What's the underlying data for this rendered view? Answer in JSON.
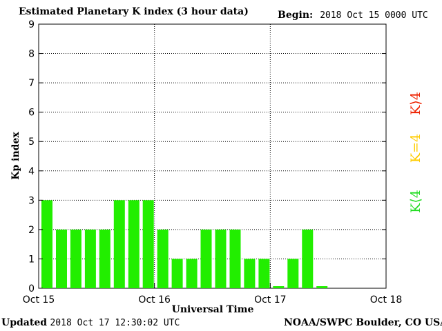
{
  "header": {
    "title": "Estimated Planetary K index (3 hour data)",
    "begin_label": "Begin:",
    "begin_value": "2018 Oct 15 0000 UTC"
  },
  "footer": {
    "updated_label": "Updated",
    "updated_value": "2018 Oct 17 12:30:02 UTC",
    "credit": "NOAA/SWPC Boulder, CO USA"
  },
  "legend": [
    {
      "label": "K⟨4",
      "color": "#22dd22"
    },
    {
      "label": "K=4",
      "color": "#ffcc00"
    },
    {
      "label": "K⟩4",
      "color": "#ee2200"
    }
  ],
  "chart_data": {
    "type": "bar",
    "xlabel": "Universal Time",
    "ylabel": "Kp index",
    "ylim": [
      0,
      9
    ],
    "yticks": [
      "0",
      "1",
      "2",
      "3",
      "4",
      "5",
      "6",
      "7",
      "8",
      "9"
    ],
    "xticks": [
      "Oct 15",
      "Oct 16",
      "Oct 17",
      "Oct 18"
    ],
    "grid": true,
    "bar_color": "#22ee00",
    "values": [
      3,
      2,
      2,
      2,
      2,
      3,
      3,
      3,
      2,
      1,
      1,
      2,
      2,
      2,
      1,
      1,
      0.07,
      1,
      2,
      0.07
    ]
  }
}
